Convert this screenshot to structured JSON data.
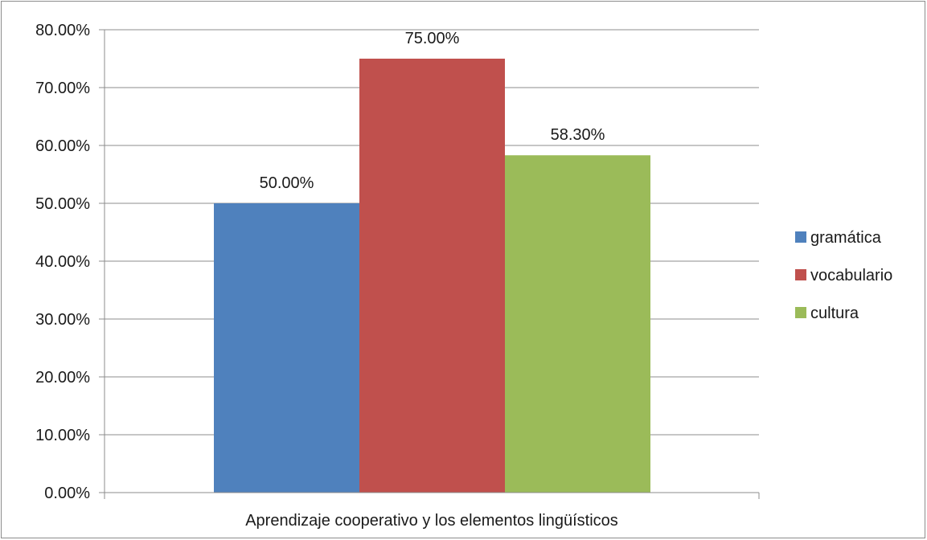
{
  "chart_data": {
    "type": "bar",
    "categories": [
      "Aprendizaje cooperativo y los elementos lingüísticos"
    ],
    "series": [
      {
        "name": "gramática",
        "values": [
          50.0
        ],
        "label": "50.00%",
        "color": "#4F81BD"
      },
      {
        "name": "vocabulario",
        "values": [
          75.0
        ],
        "label": "75.00%",
        "color": "#C0504D"
      },
      {
        "name": "cultura",
        "values": [
          58.3
        ],
        "label": "58.30%",
        "color": "#9BBB59"
      }
    ],
    "ylim": [
      0,
      80
    ],
    "yticks": [
      {
        "value": 0,
        "label": "0.00%"
      },
      {
        "value": 10,
        "label": "10.00%"
      },
      {
        "value": 20,
        "label": "20.00%"
      },
      {
        "value": 30,
        "label": "30.00%"
      },
      {
        "value": 40,
        "label": "40.00%"
      },
      {
        "value": 50,
        "label": "50.00%"
      },
      {
        "value": 60,
        "label": "60.00%"
      },
      {
        "value": 70,
        "label": "70.00%"
      },
      {
        "value": 80,
        "label": "80.00%"
      }
    ],
    "grid": true,
    "legend_position": "right",
    "title": "",
    "xlabel": "",
    "ylabel": ""
  }
}
